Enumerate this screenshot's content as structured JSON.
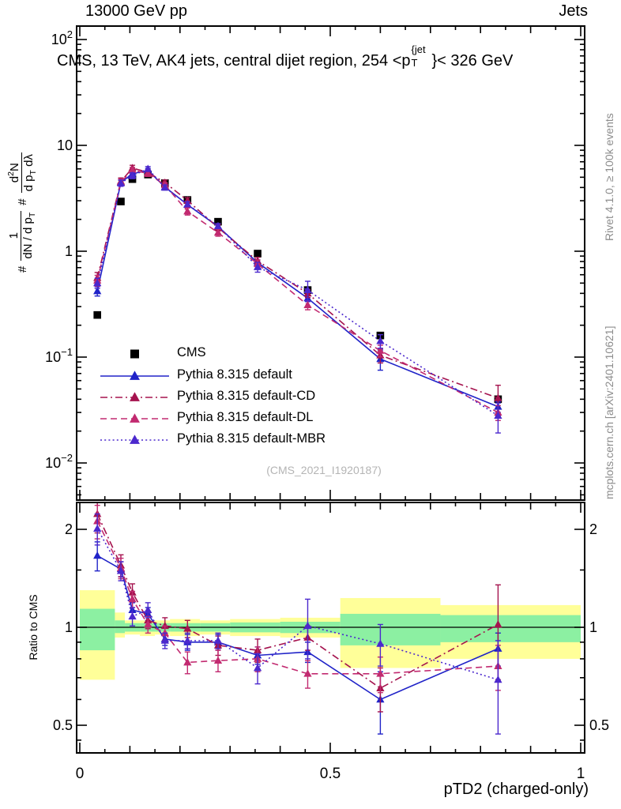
{
  "header": {
    "left": "13000 GeV pp",
    "right": "Jets"
  },
  "title": {
    "pre": "CMS, 13 TeV, AK4 jets, central dijet region, 254 <p",
    "sup": "{jet",
    "sub": "T",
    "post": "}< 326 GeV"
  },
  "ylabel": {
    "h1": "#",
    "f1num": "1",
    "f1den_a": "dN / d p",
    "f1den_sub": "T",
    "h2": "#",
    "f2num_a": "d",
    "f2num_sup": "2",
    "f2num_b": "N",
    "f2den_a": "d p",
    "f2den_sub": "T",
    "f2den_b": " dλ"
  },
  "ratio_ylabel": "Ratio to CMS",
  "xlabel": "pTD2 (charged-only)",
  "watermark": "(CMS_2021_I1920187)",
  "credits": {
    "top": "Rivet 4.1.0, ≥ 100k events",
    "bottom": "mcplots.cern.ch [arXiv:2401.10621]"
  },
  "chart_data": {
    "type": "line",
    "title": "CMS, 13 TeV, AK4 jets, central dijet region, 254 <pT{jet}< 326 GeV",
    "xlabel": "pTD2 (charged-only)",
    "ylabel": "# 1/(dN/dpT) # d2N/(dpT dlambda)",
    "ratio_label": "Ratio to CMS",
    "x": [
      0.035,
      0.082,
      0.105,
      0.136,
      0.17,
      0.215,
      0.276,
      0.355,
      0.455,
      0.6,
      0.835
    ],
    "xlim": [
      -0.006,
      1.008
    ],
    "main_ylim": [
      0.0045,
      135
    ],
    "ratio_ylim": [
      0.41,
      2.42
    ],
    "grid": false,
    "legend_position": "inside-left-middle",
    "series": [
      {
        "label": "CMS",
        "color": "#000000",
        "marker": "square",
        "dash": "none",
        "main": [
          0.25,
          2.95,
          4.8,
          5.3,
          4.4,
          3.05,
          1.9,
          0.95,
          0.43,
          0.16,
          0.04
        ],
        "ratio": null,
        "ratio_err": null
      },
      {
        "label": "Pythia 8.315 default",
        "color": "#2023c8",
        "marker": "triangle",
        "dash": "solid",
        "main": [
          0.42,
          4.45,
          5.4,
          5.8,
          4.05,
          2.75,
          1.71,
          0.78,
          0.36,
          0.096,
          0.034
        ],
        "ratio": [
          1.66,
          1.51,
          1.13,
          1.1,
          0.92,
          0.9,
          0.9,
          0.82,
          0.84,
          0.6,
          0.86
        ],
        "ratio_err": [
          0.17,
          0.08,
          0.06,
          0.05,
          0.04,
          0.05,
          0.05,
          0.05,
          0.06,
          0.13,
          0.1
        ]
      },
      {
        "label": "Pythia 8.315 default-CD",
        "color": "#a5134e",
        "marker": "triangle",
        "dash": "dashdot",
        "main": [
          0.56,
          4.57,
          6.1,
          5.57,
          4.44,
          3.02,
          1.67,
          0.81,
          0.4,
          0.104,
          0.041
        ],
        "ratio": [
          2.23,
          1.55,
          1.28,
          1.05,
          1.01,
          0.99,
          0.88,
          0.85,
          0.93,
          0.65,
          1.02
        ],
        "ratio_err": [
          0.28,
          0.12,
          0.08,
          0.06,
          0.06,
          0.06,
          0.06,
          0.07,
          0.08,
          0.1,
          0.33
        ]
      },
      {
        "label": "Pythia 8.315 default-DL",
        "color": "#c22a70",
        "marker": "triangle",
        "dash": "dashed",
        "main": [
          0.53,
          4.48,
          5.86,
          5.41,
          4.22,
          2.38,
          1.5,
          0.76,
          0.31,
          0.115,
          0.03
        ],
        "ratio": [
          2.12,
          1.52,
          1.22,
          1.02,
          0.96,
          0.78,
          0.79,
          0.8,
          0.72,
          0.72,
          0.76
        ],
        "ratio_err": [
          0.25,
          0.11,
          0.07,
          0.06,
          0.05,
          0.06,
          0.06,
          0.07,
          0.07,
          0.09,
          0.12
        ]
      },
      {
        "label": "Pythia 8.315 default-MBR",
        "color": "#4b28cd",
        "marker": "triangle",
        "dash": "dotted",
        "main": [
          0.5,
          4.4,
          5.18,
          5.99,
          4.0,
          2.78,
          1.73,
          0.71,
          0.43,
          0.142,
          0.028
        ],
        "ratio": [
          2.01,
          1.49,
          1.08,
          1.13,
          0.91,
          0.91,
          0.91,
          0.75,
          1.01,
          0.89,
          0.69
        ],
        "ratio_err": [
          0.22,
          0.1,
          0.07,
          0.06,
          0.05,
          0.05,
          0.05,
          0.08,
          0.21,
          0.13,
          0.22
        ]
      }
    ],
    "band_colors": {
      "outer": "#ffff99",
      "inner": "#8cf0a2"
    },
    "bands": [
      {
        "x0": 0.0,
        "x1": 0.07,
        "y0": 0.69,
        "y1": 1.3,
        "g0": 0.85,
        "g1": 1.14
      },
      {
        "x0": 0.07,
        "x1": 0.09,
        "y0": 0.93,
        "y1": 1.11,
        "g0": 0.96,
        "g1": 1.05
      },
      {
        "x0": 0.09,
        "x1": 0.12,
        "y0": 0.95,
        "y1": 1.05,
        "g0": 0.97,
        "g1": 1.03
      },
      {
        "x0": 0.12,
        "x1": 0.15,
        "y0": 0.94,
        "y1": 1.05,
        "g0": 0.97,
        "g1": 1.03
      },
      {
        "x0": 0.15,
        "x1": 0.18,
        "y0": 0.95,
        "y1": 1.05,
        "g0": 0.97,
        "g1": 1.03
      },
      {
        "x0": 0.18,
        "x1": 0.24,
        "y0": 0.94,
        "y1": 1.06,
        "g0": 0.97,
        "g1": 1.03
      },
      {
        "x0": 0.24,
        "x1": 0.3,
        "y0": 0.95,
        "y1": 1.05,
        "g0": 0.97,
        "g1": 1.03
      },
      {
        "x0": 0.3,
        "x1": 0.4,
        "y0": 0.94,
        "y1": 1.06,
        "g0": 0.965,
        "g1": 1.035
      },
      {
        "x0": 0.4,
        "x1": 0.52,
        "y0": 0.93,
        "y1": 1.07,
        "g0": 0.96,
        "g1": 1.04
      },
      {
        "x0": 0.52,
        "x1": 0.72,
        "y0": 0.75,
        "y1": 1.23,
        "g0": 0.88,
        "g1": 1.1
      },
      {
        "x0": 0.72,
        "x1": 1.0,
        "y0": 0.8,
        "y1": 1.17,
        "g0": 0.9,
        "g1": 1.09
      }
    ],
    "main_y_ticks": [
      {
        "b": "10",
        "e": "2",
        "v": 100
      },
      {
        "b": "10",
        "e": "",
        "v": 10
      },
      {
        "b": "1",
        "e": "",
        "v": 1
      },
      {
        "b": "10",
        "e": "−1",
        "v": 0.1
      },
      {
        "b": "10",
        "e": "−2",
        "v": 0.01
      }
    ],
    "ratio_y_ticks": [
      {
        "t": "2",
        "v": 2
      },
      {
        "t": "1",
        "v": 1
      },
      {
        "t": "0.5",
        "v": 0.5
      }
    ],
    "x_ticks": [
      {
        "t": "0",
        "v": 0
      },
      {
        "t": "0.5",
        "v": 0.5
      },
      {
        "t": "1",
        "v": 1
      }
    ]
  }
}
